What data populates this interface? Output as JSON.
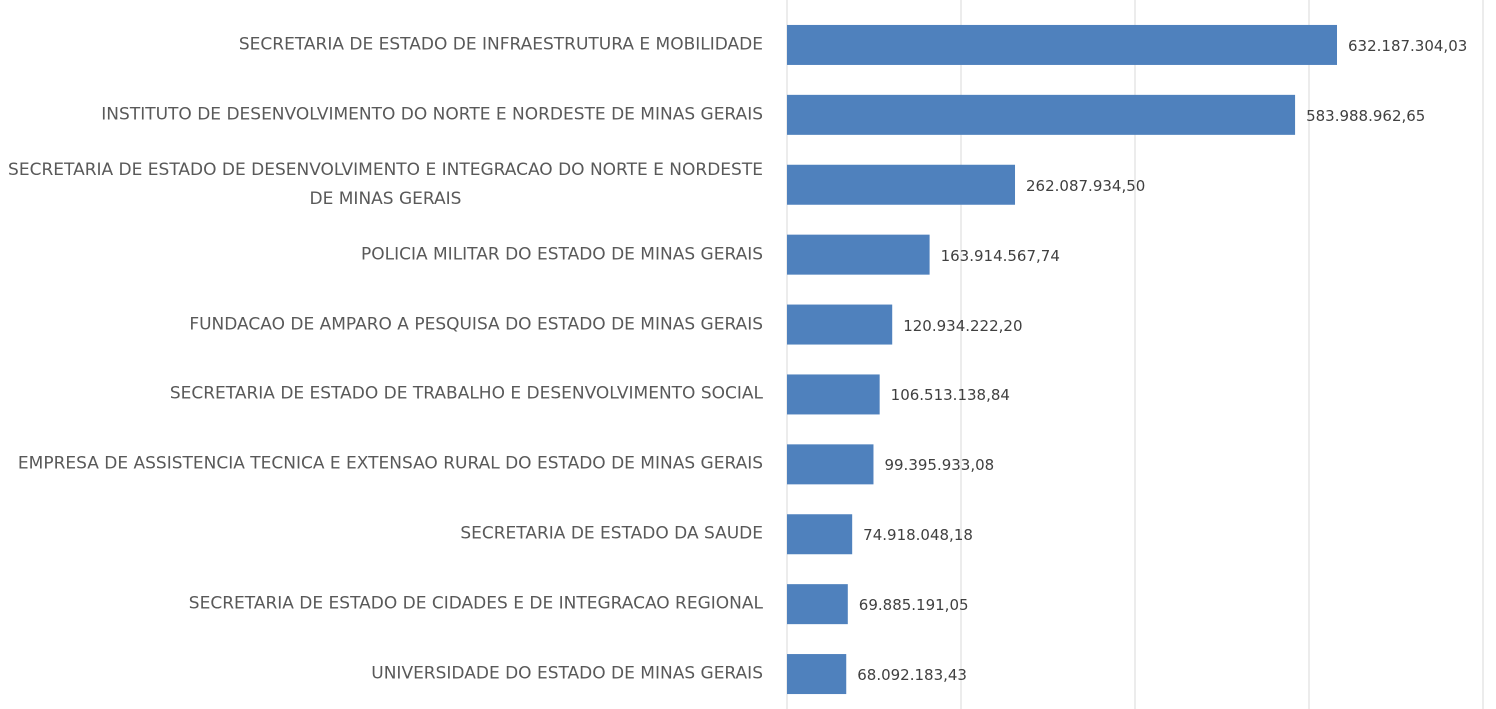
{
  "chart_data": {
    "type": "bar",
    "orientation": "horizontal",
    "categories": [
      "SECRETARIA DE ESTADO DE INFRAESTRUTURA E MOBILIDADE",
      "INSTITUTO DE DESENVOLVIMENTO DO NORTE E NORDESTE DE MINAS GERAIS",
      "SECRETARIA DE ESTADO DE DESENVOLVIMENTO E INTEGRACAO DO NORTE E NORDESTE DE MINAS GERAIS",
      "POLICIA MILITAR DO ESTADO DE MINAS GERAIS",
      "FUNDACAO DE AMPARO A PESQUISA DO ESTADO DE MINAS GERAIS",
      "SECRETARIA DE ESTADO DE TRABALHO E DESENVOLVIMENTO SOCIAL",
      "EMPRESA DE ASSISTENCIA TECNICA E EXTENSAO RURAL DO ESTADO DE MINAS GERAIS",
      "SECRETARIA DE ESTADO DA SAUDE",
      "SECRETARIA DE ESTADO DE CIDADES E DE INTEGRACAO REGIONAL",
      "UNIVERSIDADE DO ESTADO DE MINAS GERAIS"
    ],
    "values": [
      632187304.03,
      583988962.65,
      262087934.5,
      163914567.74,
      120934222.2,
      106513138.84,
      99395933.08,
      74918048.18,
      69885191.05,
      68092183.43
    ],
    "value_labels": [
      "632.187.304,03",
      "583.988.962,65",
      "262.087.934,50",
      "163.914.567,74",
      "120.934.222,20",
      "106.513.138,84",
      "99.395.933,08",
      "74.918.048,18",
      "69.885.191,05",
      "68.092.183,43"
    ],
    "color": "#4f81bd",
    "xlim": [
      0,
      800000000
    ],
    "xticks": [
      0,
      200000000,
      400000000,
      600000000,
      800000000
    ],
    "grid": true
  }
}
